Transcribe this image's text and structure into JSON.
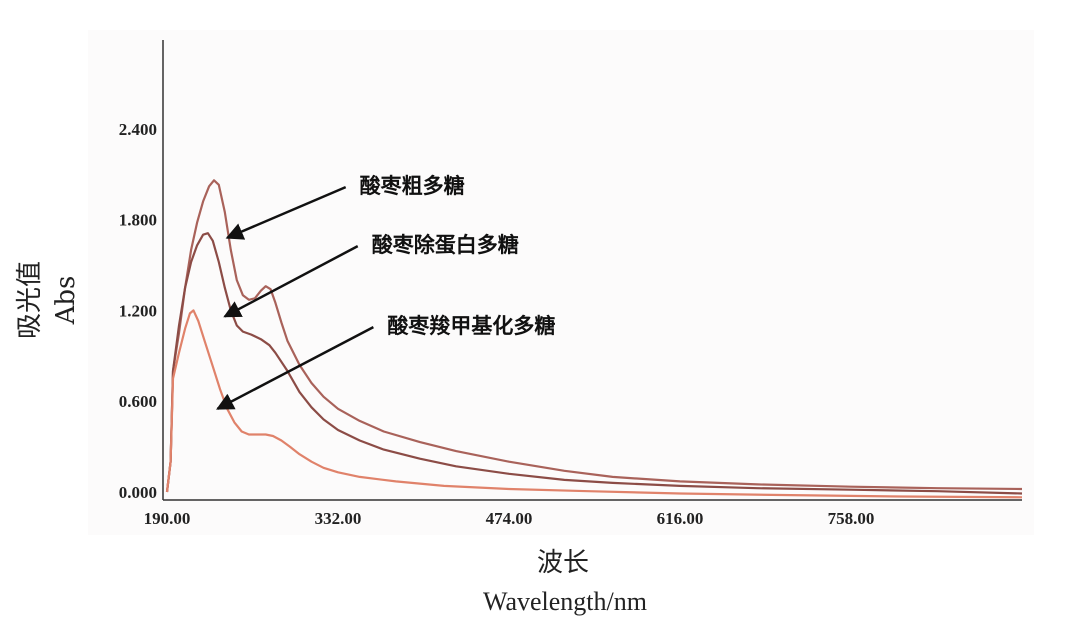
{
  "chart_data": {
    "type": "line",
    "ylabel_cn": "吸光值",
    "ylabel_en": "Abs",
    "xlabel_cn": "波长",
    "xlabel_en": "Wavelength/nm",
    "x_ticks": [
      "190.00",
      "332.00",
      "474.00",
      "616.00",
      "758.00"
    ],
    "y_ticks": [
      "0.000",
      "0.600",
      "1.200",
      "1.800",
      "2.400"
    ],
    "xlim": [
      190,
      900
    ],
    "ylim": [
      0,
      3.0
    ],
    "grid": false,
    "series": [
      {
        "name": "酸枣粗多糖",
        "color": "#a9625a",
        "points": [
          [
            190,
            0
          ],
          [
            193,
            0.2
          ],
          [
            195,
            0.8
          ],
          [
            200,
            1.05
          ],
          [
            205,
            1.35
          ],
          [
            210,
            1.6
          ],
          [
            215,
            1.78
          ],
          [
            220,
            1.92
          ],
          [
            225,
            2.02
          ],
          [
            229,
            2.06
          ],
          [
            233,
            2.03
          ],
          [
            238,
            1.85
          ],
          [
            243,
            1.6
          ],
          [
            248,
            1.4
          ],
          [
            253,
            1.3
          ],
          [
            258,
            1.27
          ],
          [
            263,
            1.28
          ],
          [
            268,
            1.33
          ],
          [
            272,
            1.36
          ],
          [
            276,
            1.34
          ],
          [
            280,
            1.25
          ],
          [
            285,
            1.12
          ],
          [
            290,
            1.0
          ],
          [
            300,
            0.84
          ],
          [
            310,
            0.72
          ],
          [
            320,
            0.63
          ],
          [
            332,
            0.55
          ],
          [
            350,
            0.47
          ],
          [
            370,
            0.4
          ],
          [
            400,
            0.33
          ],
          [
            430,
            0.27
          ],
          [
            474,
            0.2
          ],
          [
            520,
            0.14
          ],
          [
            560,
            0.1
          ],
          [
            616,
            0.07
          ],
          [
            680,
            0.05
          ],
          [
            758,
            0.035
          ],
          [
            830,
            0.025
          ],
          [
            900,
            0.02
          ]
        ]
      },
      {
        "name": "酸枣除蛋白多糖",
        "color": "#8c4c46",
        "points": [
          [
            190,
            0
          ],
          [
            193,
            0.2
          ],
          [
            195,
            0.8
          ],
          [
            200,
            1.1
          ],
          [
            205,
            1.35
          ],
          [
            210,
            1.52
          ],
          [
            215,
            1.63
          ],
          [
            220,
            1.7
          ],
          [
            224,
            1.71
          ],
          [
            228,
            1.66
          ],
          [
            233,
            1.52
          ],
          [
            238,
            1.35
          ],
          [
            243,
            1.2
          ],
          [
            248,
            1.1
          ],
          [
            253,
            1.06
          ],
          [
            260,
            1.04
          ],
          [
            268,
            1.01
          ],
          [
            275,
            0.97
          ],
          [
            280,
            0.92
          ],
          [
            290,
            0.8
          ],
          [
            300,
            0.66
          ],
          [
            310,
            0.56
          ],
          [
            320,
            0.48
          ],
          [
            332,
            0.41
          ],
          [
            350,
            0.34
          ],
          [
            370,
            0.28
          ],
          [
            400,
            0.22
          ],
          [
            430,
            0.17
          ],
          [
            474,
            0.12
          ],
          [
            520,
            0.08
          ],
          [
            560,
            0.06
          ],
          [
            616,
            0.04
          ],
          [
            680,
            0.025
          ],
          [
            758,
            0.015
          ],
          [
            830,
            0.005
          ],
          [
            900,
            -0.01
          ]
        ]
      },
      {
        "name": "酸枣羧甲基化多糖",
        "color": "#e0826a",
        "points": [
          [
            190,
            0
          ],
          [
            193,
            0.2
          ],
          [
            195,
            0.75
          ],
          [
            200,
            0.92
          ],
          [
            205,
            1.08
          ],
          [
            209,
            1.18
          ],
          [
            212,
            1.2
          ],
          [
            216,
            1.13
          ],
          [
            222,
            0.98
          ],
          [
            228,
            0.83
          ],
          [
            234,
            0.68
          ],
          [
            240,
            0.55
          ],
          [
            246,
            0.46
          ],
          [
            252,
            0.4
          ],
          [
            258,
            0.38
          ],
          [
            265,
            0.38
          ],
          [
            272,
            0.38
          ],
          [
            278,
            0.37
          ],
          [
            285,
            0.34
          ],
          [
            292,
            0.3
          ],
          [
            300,
            0.25
          ],
          [
            310,
            0.2
          ],
          [
            320,
            0.16
          ],
          [
            332,
            0.13
          ],
          [
            350,
            0.1
          ],
          [
            380,
            0.07
          ],
          [
            420,
            0.04
          ],
          [
            474,
            0.02
          ],
          [
            540,
            0.005
          ],
          [
            616,
            -0.01
          ],
          [
            700,
            -0.02
          ],
          [
            800,
            -0.03
          ],
          [
            900,
            -0.035
          ]
        ]
      }
    ],
    "annotations": [
      {
        "text": "酸枣粗多糖",
        "x": 350,
        "y": 1.975,
        "arrow_to": [
          240,
          1.68
        ]
      },
      {
        "text": "酸枣除蛋白多糖",
        "x": 360,
        "y": 1.585,
        "arrow_to": [
          238,
          1.16
        ]
      },
      {
        "text": "酸枣羧甲基化多糖",
        "x": 373,
        "y": 1.05,
        "arrow_to": [
          232,
          0.55
        ]
      }
    ]
  }
}
